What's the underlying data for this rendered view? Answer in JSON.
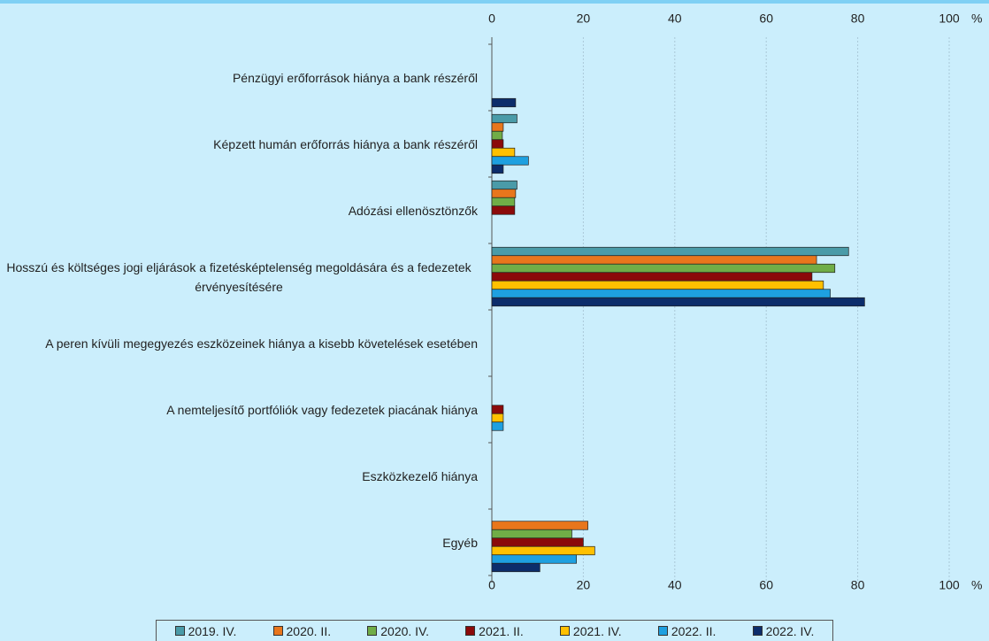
{
  "chart_data": {
    "type": "hbar",
    "xlabel": "%",
    "categories": [
      "Pénzügyi erőforrások hiánya a bank részéről",
      "Képzett humán erőforrás hiánya a bank részéről",
      "Adózási ellenösztönzők",
      "Hosszú és költséges jogi eljárások a fizetésképtelenség megoldására és a fedezetek érvényesítésére",
      "A peren kívüli megegyezés eszközeinek hiánya a kisebb követelések esetében",
      "A nemteljesítő portfóliók vagy fedezetek piacának hiánya",
      "Eszközkezelő hiánya",
      "Egyéb"
    ],
    "series": [
      {
        "name": "2019. IV.",
        "color": "#4a9ba8",
        "values": [
          null,
          5.5,
          5.5,
          78,
          null,
          null,
          null,
          null
        ]
      },
      {
        "name": "2020. II.",
        "color": "#e8761c",
        "values": [
          null,
          2.5,
          5.2,
          71,
          null,
          null,
          null,
          21
        ]
      },
      {
        "name": "2020. IV.",
        "color": "#70ad47",
        "values": [
          null,
          2.3,
          5,
          75,
          null,
          null,
          null,
          17.5
        ]
      },
      {
        "name": "2021. II.",
        "color": "#8b0a0a",
        "values": [
          null,
          2.5,
          5,
          70,
          null,
          2.5,
          null,
          20
        ]
      },
      {
        "name": "2021. IV.",
        "color": "#ffc000",
        "values": [
          null,
          5,
          null,
          72.5,
          null,
          2.5,
          null,
          22.5
        ]
      },
      {
        "name": "2022. II.",
        "color": "#1ea0e0",
        "values": [
          null,
          8,
          null,
          74,
          null,
          2.5,
          null,
          18.5
        ]
      },
      {
        "name": "2022. IV.",
        "color": "#0c2d6b",
        "values": [
          5.2,
          2.5,
          null,
          81.5,
          null,
          null,
          null,
          10.5
        ]
      }
    ],
    "xlim": [
      0,
      100
    ],
    "xticks": [
      0,
      20,
      40,
      60,
      80,
      100
    ],
    "grid": true
  }
}
